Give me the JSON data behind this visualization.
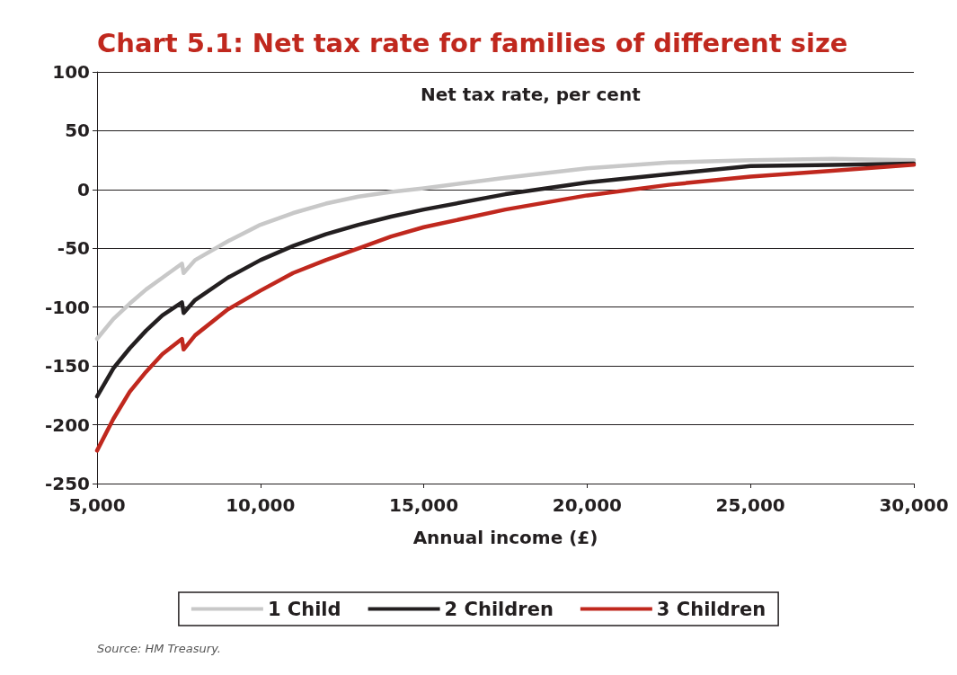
{
  "chart_data": {
    "type": "line",
    "title": "Chart 5.1: Net tax rate for families of different size",
    "ylabel": "Net tax rate, per cent",
    "xlabel": "Annual income (£)",
    "x": [
      5000,
      5500,
      6000,
      6500,
      7000,
      7600,
      7650,
      8000,
      9000,
      10000,
      11000,
      12000,
      13000,
      14000,
      15000,
      17500,
      20000,
      22500,
      25000,
      27500,
      30000
    ],
    "series": [
      {
        "name": "1 Child",
        "color": "#c8c8c8",
        "values": [
          -127,
          -110,
          -97,
          -85,
          -75,
          -63,
          -71,
          -60,
          -44,
          -30,
          -20,
          -12,
          -6,
          -2,
          1,
          10,
          18,
          23,
          25,
          26,
          25
        ]
      },
      {
        "name": "2 Children",
        "color": "#231f20",
        "values": [
          -176,
          -152,
          -135,
          -120,
          -107,
          -96,
          -105,
          -94,
          -75,
          -60,
          -48,
          -38,
          -30,
          -23,
          -17,
          -4,
          6,
          13,
          20,
          21,
          22
        ]
      },
      {
        "name": "3 Children",
        "color": "#c0281e",
        "values": [
          -222,
          -195,
          -172,
          -155,
          -140,
          -127,
          -136,
          -124,
          -102,
          -86,
          -71,
          -60,
          -50,
          -40,
          -32,
          -17,
          -5,
          4,
          11,
          16,
          21
        ]
      }
    ],
    "xlim": [
      5000,
      30000
    ],
    "xticks": [
      {
        "value": 5000,
        "label": "5,000"
      },
      {
        "value": 10000,
        "label": "10,000"
      },
      {
        "value": 15000,
        "label": "15,000"
      },
      {
        "value": 20000,
        "label": "20,000"
      },
      {
        "value": 25000,
        "label": "25,000"
      },
      {
        "value": 30000,
        "label": "30,000"
      }
    ],
    "ylim": [
      -250,
      100
    ],
    "yticks": [
      -250,
      -200,
      -150,
      -100,
      -50,
      0,
      50,
      100
    ],
    "grid": "y",
    "legend": "bottom",
    "marker": "none",
    "line_style": "solid",
    "annotations": [
      "Source: HM Treasury."
    ]
  }
}
